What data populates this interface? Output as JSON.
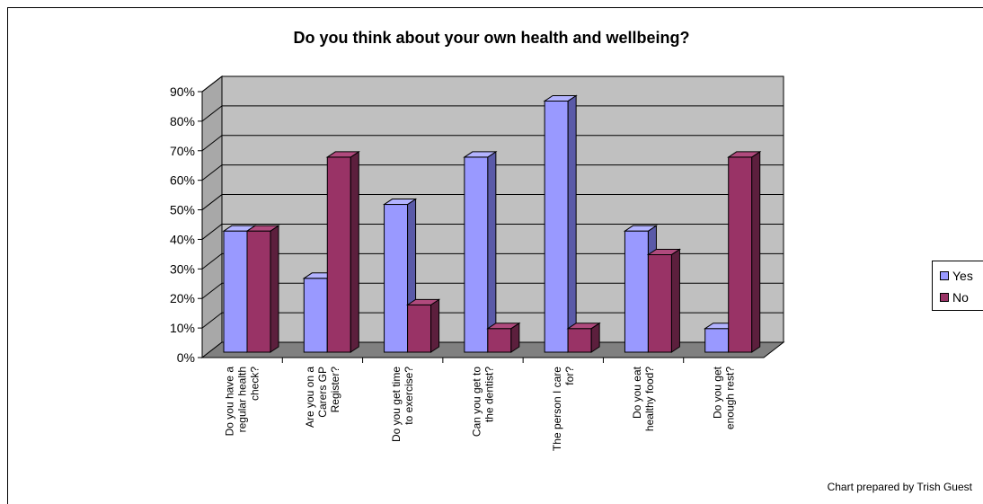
{
  "chart_data": {
    "type": "bar",
    "title": "Do you think about your own health and wellbeing?",
    "categories": [
      "Do you have a regular health check?",
      "Are you on a Carers GP Register?",
      "Do you get time to exercise?",
      "Can you get to the dentist?",
      "The person I care for?",
      "Do you eat healthy food?",
      "Do you get enough rest?"
    ],
    "category_lines": [
      [
        "Do you have a",
        "regular health",
        "check?"
      ],
      [
        "Are you on a",
        "Carers GP",
        "Register?"
      ],
      [
        "Do you get time",
        "to exercise?"
      ],
      [
        "Can you get to",
        "the dentist?"
      ],
      [
        "The person I care",
        "for?"
      ],
      [
        "Do you eat",
        "healthy food?"
      ],
      [
        "Do you get",
        "enough rest?"
      ]
    ],
    "series": [
      {
        "name": "Yes",
        "values": [
          41,
          25,
          50,
          66,
          85,
          41,
          8
        ],
        "color": "#9999ff",
        "side_color": "#5a5aa8",
        "top_color": "#b3b3ff"
      },
      {
        "name": "No",
        "values": [
          41,
          66,
          16,
          8,
          8,
          33,
          66
        ],
        "color": "#993366",
        "side_color": "#5c1f3d",
        "top_color": "#b04a7d"
      }
    ],
    "ylim": [
      0,
      90
    ],
    "yticks": [
      "0%",
      "10%",
      "20%",
      "30%",
      "40%",
      "50%",
      "60%",
      "70%",
      "80%",
      "90%"
    ],
    "grid": true,
    "legend_position": "right",
    "wall_color": "#c0c0c0",
    "floor_color": "#808080"
  },
  "credit": "Chart prepared by Trish Guest"
}
